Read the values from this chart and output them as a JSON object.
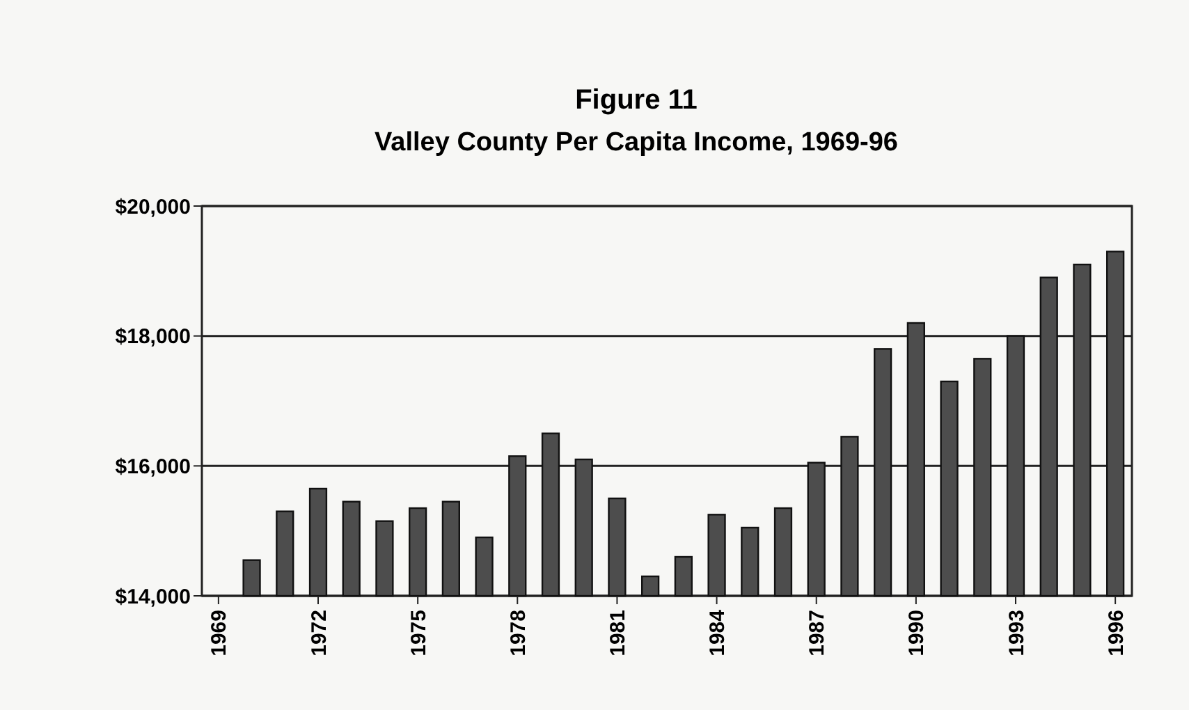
{
  "chart_data": {
    "type": "bar",
    "title": "Figure 11",
    "subtitle": "Valley County Per Capita Income, 1969-96",
    "categories": [
      "1969",
      null,
      null,
      "1972",
      null,
      null,
      "1975",
      null,
      null,
      "1978",
      null,
      null,
      "1981",
      null,
      null,
      "1984",
      null,
      null,
      "1987",
      null,
      null,
      "1990",
      null,
      null,
      "1993",
      null,
      null,
      "1996"
    ],
    "values": [
      null,
      14550,
      15300,
      15650,
      15450,
      15150,
      15350,
      15450,
      14900,
      16150,
      16500,
      16100,
      15500,
      14300,
      14600,
      15250,
      15050,
      15350,
      16050,
      16450,
      17800,
      18200,
      17300,
      17650,
      18000,
      18900,
      19100,
      19300
    ],
    "color": "#4d4d4d",
    "ylim": [
      14000,
      20000
    ],
    "yticks": [
      {
        "value": 14000,
        "label": "$14,000"
      },
      {
        "value": 16000,
        "label": "$16,000"
      },
      {
        "value": 18000,
        "label": "$18,000"
      },
      {
        "value": 20000,
        "label": "$20,000"
      }
    ],
    "grid": "y"
  }
}
